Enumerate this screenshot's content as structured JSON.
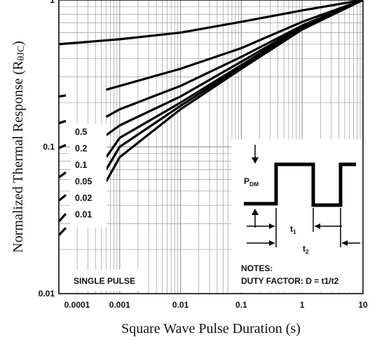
{
  "chart_data": {
    "type": "line",
    "title": "",
    "xlabel": "Square Wave Pulse Duration (s)",
    "ylabel_parts": {
      "main": "Normalized Thermal Response (R",
      "sub": "θJC",
      "end": ")"
    },
    "x_scale": "log",
    "y_scale": "log",
    "xlim": [
      0.0001,
      10
    ],
    "ylim": [
      0.01,
      1
    ],
    "grid": true,
    "x_ticks": [
      "0.0001",
      "0.001",
      "0.01",
      "0.1",
      "1",
      "10"
    ],
    "y_ticks": [
      "0.01",
      "0.1",
      "1"
    ],
    "series": [
      {
        "name": "0.5",
        "x": [
          0.0001,
          0.001,
          0.01,
          0.1,
          1,
          10
        ],
        "y": [
          0.5,
          0.54,
          0.6,
          0.71,
          0.85,
          1.0
        ]
      },
      {
        "name": "0.2",
        "x": [
          0.0006,
          0.001,
          0.01,
          0.1,
          1,
          10
        ],
        "y": [
          0.245,
          0.26,
          0.34,
          0.47,
          0.71,
          1.0
        ]
      },
      {
        "name": "0.1",
        "x": [
          0.0006,
          0.001,
          0.01,
          0.1,
          1,
          10
        ],
        "y": [
          0.16,
          0.18,
          0.26,
          0.41,
          0.67,
          1.0
        ]
      },
      {
        "name": "0.05",
        "x": [
          0.0006,
          0.001,
          0.01,
          0.1,
          1,
          10
        ],
        "y": [
          0.12,
          0.14,
          0.22,
          0.38,
          0.66,
          1.0
        ]
      },
      {
        "name": "0.02",
        "x": [
          0.0006,
          0.001,
          0.01,
          0.1,
          1,
          10
        ],
        "y": [
          0.085,
          0.115,
          0.2,
          0.36,
          0.65,
          1.0
        ]
      },
      {
        "name": "0.01",
        "x": [
          0.0006,
          0.001,
          0.01,
          0.1,
          1,
          10
        ],
        "y": [
          0.07,
          0.1,
          0.19,
          0.35,
          0.64,
          1.0
        ]
      },
      {
        "name": "SINGLE PULSE",
        "x": [
          0.0006,
          0.001,
          0.01,
          0.1,
          1,
          10
        ],
        "y": [
          0.058,
          0.085,
          0.18,
          0.34,
          0.63,
          1.0
        ]
      }
    ],
    "left_stubs": [
      {
        "name": "0.5",
        "x": [
          0.0001,
          0.00013
        ],
        "y": [
          0.22,
          0.224
        ]
      },
      {
        "name": "0.2",
        "x": [
          0.0001,
          0.00013
        ],
        "y": [
          0.145,
          0.15
        ]
      },
      {
        "name": "0.1",
        "x": [
          0.0001,
          0.00013
        ],
        "y": [
          0.098,
          0.103
        ]
      },
      {
        "name": "0.05",
        "x": [
          0.0001,
          0.00013
        ],
        "y": [
          0.062,
          0.067
        ]
      },
      {
        "name": "0.02",
        "x": [
          0.0001,
          0.00013
        ],
        "y": [
          0.043,
          0.047
        ]
      },
      {
        "name": "0.01",
        "x": [
          0.0001,
          0.00013
        ],
        "y": [
          0.031,
          0.035
        ]
      },
      {
        "name": "SINGLE PULSE",
        "x": [
          0.0001,
          0.00013
        ],
        "y": [
          0.025,
          0.028
        ]
      }
    ],
    "duty_labels": [
      "0.5",
      "0.2",
      "0.1",
      "0.05",
      "0.02",
      "0.01"
    ],
    "single_pulse_label": "SINGLE PULSE",
    "inset": {
      "pdm_main": "P",
      "pdm_sub": "DM",
      "t1_main": "t",
      "t1_sub": "1",
      "t2_main": "t",
      "t2_sub": "2",
      "notes_title": "NOTES:",
      "notes_text": "DUTY FACTOR: D = t1/t2"
    },
    "colors": {
      "line": "#000000",
      "grid": "#9a9a9a",
      "background": "#ffffff"
    }
  }
}
